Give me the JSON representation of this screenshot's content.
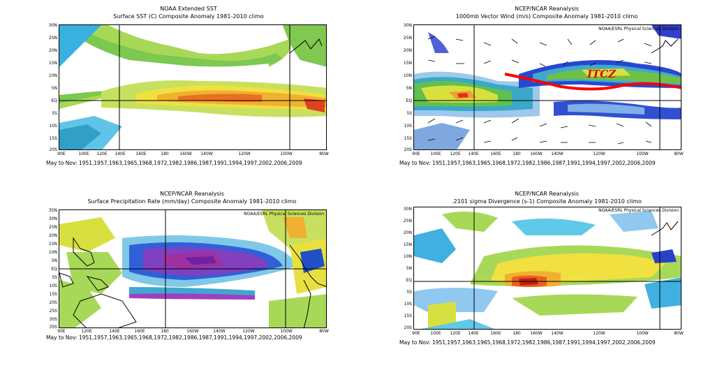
{
  "footnote": "May to Nov: 1951,1957,1963,1965,1968,1972,1982,1986,1987,1991,1994,1997,2002,2006,2009",
  "panels": {
    "sst": {
      "title1": "NOAA Extended SST",
      "title2": "Surface SST (C) Composite Anomaly 1981-2010 climo",
      "credit": "",
      "y": [
        "30N",
        "25N",
        "20N",
        "15N",
        "10N",
        "5N",
        "EQ",
        "5S",
        "10S",
        "15S",
        "20S"
      ],
      "x": [
        "90E",
        "100E",
        "120E",
        "140E",
        "160E",
        "180",
        "160W",
        "140W",
        "120W",
        "100W",
        "80W"
      ]
    },
    "wind": {
      "title1": "NCEP/NCAR Reanalysis",
      "title2": "1000mb Vector Wind (m/s) Composite Anomaly 1981-2010 climo",
      "credit": "NOAA/ESRL Physical Sciences Division",
      "label": "ITCZ",
      "y": [
        "30N",
        "25N",
        "20N",
        "15N",
        "10N",
        "5N",
        "EQ",
        "5S",
        "10S",
        "15S",
        "20S"
      ],
      "x": [
        "90E",
        "100E",
        "120E",
        "140E",
        "160E",
        "180",
        "160W",
        "140W",
        "120W",
        "100W",
        "80W"
      ]
    },
    "precip": {
      "title1": "NCEP/NCAR Reanalysis",
      "title2": "Surface Precipitation Rate (mm/day) Composite Anomaly 1981-2010 climo",
      "credit": "NOAA/ESRL Physical Sciences Division",
      "y": [
        "35N",
        "30N",
        "25N",
        "20N",
        "15N",
        "10N",
        "5N",
        "EQ",
        "5S",
        "10S",
        "15S",
        "20S",
        "25S",
        "30S",
        "35S"
      ],
      "x": [
        "90E",
        "120E",
        "140E",
        "160E",
        "180",
        "160W",
        "140W",
        "120W",
        "100W",
        "80W"
      ]
    },
    "div": {
      "title1": "NCEP/NCAR Reanalysis",
      "title2": ".2101 sigma Divergence (s-1) Composite Anomaly 1981-2010 climo",
      "credit": "NOAA/ESRL Physical Sciences Division",
      "y": [
        "30N",
        "25N",
        "20N",
        "15N",
        "10N",
        "5N",
        "EQ",
        "5S",
        "10S",
        "15S",
        "20S"
      ],
      "x": [
        "90E",
        "100E",
        "120E",
        "140E",
        "160E",
        "180",
        "160W",
        "140W",
        "120W",
        "100W",
        "80W"
      ]
    }
  },
  "colors": {
    "yellow": "#f0e040",
    "green": "#8cd048",
    "orange": "#f0a030",
    "red": "#e03020",
    "cyan": "#40c8e8",
    "blue": "#2040d0",
    "purple": "#a040c0"
  }
}
